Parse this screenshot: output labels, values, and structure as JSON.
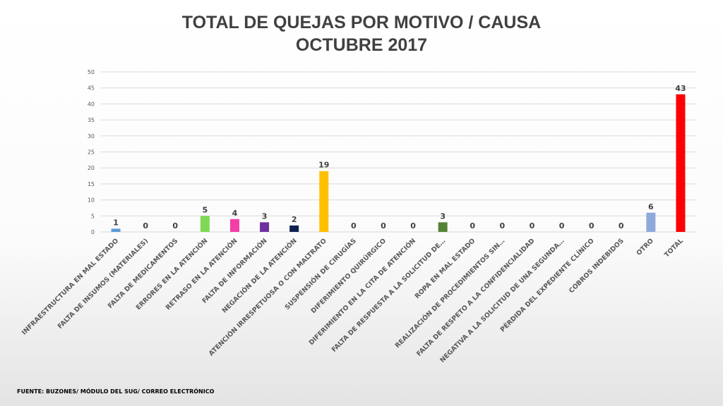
{
  "chart_data": {
    "type": "bar",
    "title": "TOTAL DE QUEJAS POR MOTIVO / CAUSA",
    "subtitle": "OCTUBRE 2017",
    "ylim": [
      0,
      50
    ],
    "yticks": [
      0,
      5,
      10,
      15,
      20,
      25,
      30,
      35,
      40,
      45,
      50
    ],
    "grid": true,
    "categories": [
      "INFRAESTRUCTURA EN MAL ESTADO",
      "FALTA DE INSUMOS (MATERIALES)",
      "FALTA DE MEDICAMENTOS",
      "ERRORES EN LA ATENCIÓN",
      "RETRASO EN LA ATENCIÓN",
      "FALTA DE INFORMACIÓN",
      "NEGACIÓN DE LA ATENCIÓN",
      "ATENCIÓN IRRESPETUOSA O CON MALTRATO",
      "SUSPENSIÓN DE CIRUGÍAS",
      "DIFERIMIENTO QUIRÚRGICO",
      "DIFERIMIENTO EN LA CITA DE ATENCIÓN",
      "FALTA DE RESPUESTA A LA SOLICITUD DE…",
      "ROPA EN MAL ESTADO",
      "REALIZACIÓN DE PROCEDIMIENTOS SIN…",
      "FALTA DE RESPETO A LA CONFIDENCIALIDAD",
      "NEGATIVA A LA SOLICITUD DE UNA SEGUNDA…",
      "PÉRDIDA DEL EXPEDIENTE CLÍNICO",
      "COBROS INDEBIDOS",
      "OTRO",
      "TOTAL"
    ],
    "values": [
      1,
      0,
      0,
      5,
      4,
      3,
      2,
      19,
      0,
      0,
      0,
      3,
      0,
      0,
      0,
      0,
      0,
      0,
      6,
      43
    ],
    "colors": [
      "#5b9bd5",
      "#5b9bd5",
      "#5b9bd5",
      "#7ed957",
      "#f23fa5",
      "#7030a0",
      "#0d1f4e",
      "#ffc000",
      "#5b9bd5",
      "#5b9bd5",
      "#5b9bd5",
      "#548235",
      "#5b9bd5",
      "#5b9bd5",
      "#5b9bd5",
      "#5b9bd5",
      "#5b9bd5",
      "#5b9bd5",
      "#8eaadb",
      "#ff0000"
    ]
  },
  "footer": "FUENTE: BUZONES/ MÓDULO DEL SUG/ CORREO ELECTRÓNICO"
}
